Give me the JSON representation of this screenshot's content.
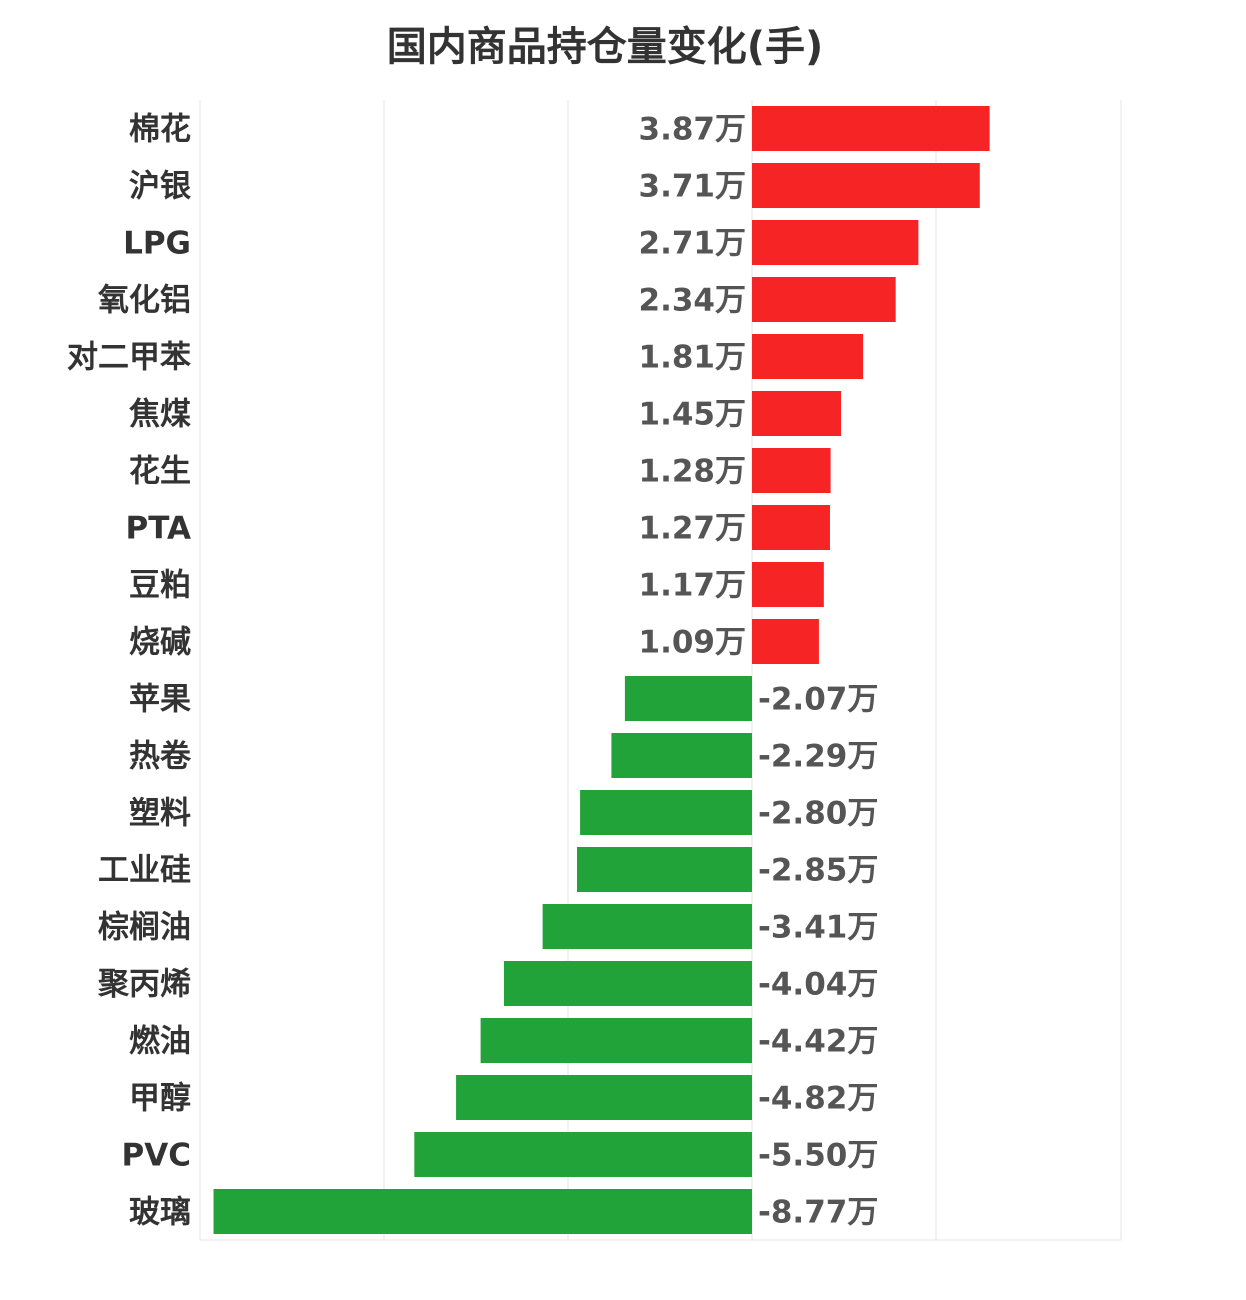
{
  "chart_data": {
    "type": "bar",
    "orientation": "horizontal",
    "title": "国内商品持仓量变化(手)",
    "unit_suffix": "万",
    "xlim": [
      -3,
      2
    ],
    "grid": true,
    "categories": [
      "棉花",
      "沪银",
      "LPG",
      "氧化铝",
      "对二甲苯",
      "焦煤",
      "花生",
      "PTA",
      "豆粕",
      "烧碱",
      "苹果",
      "热卷",
      "塑料",
      "工业硅",
      "棕榈油",
      "聚丙烯",
      "燃油",
      "甲醇",
      "PVC",
      "玻璃"
    ],
    "values": [
      3.87,
      3.71,
      2.71,
      2.34,
      1.81,
      1.45,
      1.28,
      1.27,
      1.17,
      1.09,
      -2.07,
      -2.29,
      -2.8,
      -2.85,
      -3.41,
      -4.04,
      -4.42,
      -4.82,
      -5.5,
      -8.77
    ],
    "value_labels": [
      "3.87万",
      "3.71万",
      "2.71万",
      "2.34万",
      "1.81万",
      "1.45万",
      "1.28万",
      "1.27万",
      "1.17万",
      "1.09万",
      "-2.07万",
      "-2.29万",
      "-2.80万",
      "-2.85万",
      "-3.41万",
      "-4.04万",
      "-4.42万",
      "-4.82万",
      "-5.50万",
      "-8.77万"
    ],
    "colors": {
      "positive": "#f62424",
      "negative": "#21a33a"
    }
  }
}
